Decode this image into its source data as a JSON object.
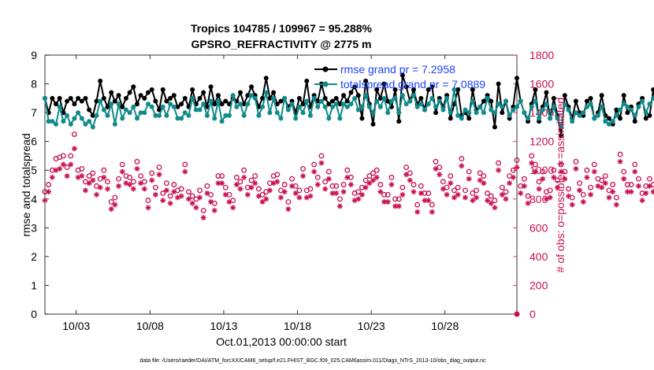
{
  "chart_data": {
    "type": "line",
    "title_line1": "Tropics 104785 / 109967 = 95.288%",
    "title_line2": "GPSRO_REFRACTIVITY @ 2775 m",
    "xlabel": "Oct.01,2013 00:00:00 start",
    "ylabel_left": "rmse and totalspread",
    "ylabel_right": "# of obs: o=possible; ∗=assimilated",
    "footer": "data file: /Users/raeder/DAI/ATM_forcXX/CAM6_setup/f.e21.FHIST_BGC.f09_025.CAM6assim.011/Diags_NTrS_2013-10/obs_diag_output.nc",
    "xlim_days": [
      0.875,
      32.875
    ],
    "x_ticks": [
      {
        "day": 3,
        "label": "10/03"
      },
      {
        "day": 8,
        "label": "10/08"
      },
      {
        "day": 13,
        "label": "10/13"
      },
      {
        "day": 18,
        "label": "10/18"
      },
      {
        "day": 23,
        "label": "10/23"
      },
      {
        "day": 28,
        "label": "10/28"
      }
    ],
    "ylim_left": [
      0,
      9
    ],
    "yticks_left": [
      "0",
      "1",
      "2",
      "3",
      "4",
      "5",
      "6",
      "7",
      "8",
      "9"
    ],
    "ylim_right": [
      0,
      1800
    ],
    "yticks_right": [
      "0",
      "200",
      "400",
      "600",
      "800",
      "1000",
      "1200",
      "1400",
      "1600",
      "1800"
    ],
    "x_start_day": 0.875,
    "x_step_days": 0.25,
    "series": [
      {
        "name": "rmse grand pr = 7.2958",
        "color": "#000000",
        "axis": "left",
        "values": [
          7.5,
          7.0,
          7.5,
          7.3,
          7.5,
          7.0,
          7.4,
          7.5,
          7.3,
          7.5,
          7.4,
          7.5,
          7.1,
          6.9,
          7.4,
          8.1,
          7.5,
          7.2,
          7.7,
          7.4,
          7.6,
          7.2,
          7.5,
          7.7,
          7.9,
          7.3,
          7.6,
          7.5,
          7.7,
          7.8,
          7.4,
          7.1,
          7.8,
          7.4,
          7.5,
          7.6,
          7.2,
          7.3,
          7.5,
          7.2,
          7.8,
          7.3,
          7.5,
          7.7,
          7.2,
          7.9,
          7.3,
          7.6,
          7.3,
          7.4,
          7.3,
          7.5,
          7.4,
          7.7,
          7.3,
          7.6,
          7.9,
          7.6,
          7.2,
          7.5,
          8.2,
          7.5,
          7.7,
          7.3,
          7.4,
          7.5,
          7.2,
          7.4,
          7.0,
          7.5,
          7.3,
          8.1,
          7.2,
          7.6,
          7.4,
          8.0,
          7.5,
          7.3,
          7.4,
          7.5,
          7.3,
          7.6,
          7.4,
          7.7,
          7.9,
          7.6,
          6.8,
          8.1,
          7.3,
          6.6,
          7.8,
          7.5,
          8.0,
          7.4,
          7.2,
          7.8,
          6.7,
          8.3,
          7.9,
          7.4,
          7.8,
          7.3,
          7.5,
          7.1,
          7.8,
          7.9,
          7.0,
          7.5,
          7.2,
          7.6,
          6.8,
          7.3,
          7.8,
          6.9,
          7.0,
          6.8,
          7.8,
          7.1,
          7.2,
          7.4,
          7.6,
          7.4,
          6.5,
          8.0,
          7.0,
          7.4,
          6.8,
          7.2,
          8.2,
          7.4,
          7.0,
          6.7,
          7.3,
          7.8,
          6.7,
          7.2,
          7.7,
          6.8,
          7.5,
          6.9,
          6.2,
          7.6,
          7.2,
          6.8,
          7.4,
          7.0,
          6.9,
          7.4,
          7.5,
          6.8,
          7.0,
          7.6,
          6.9,
          6.8,
          6.6,
          7.1,
          6.8,
          7.6,
          7.0,
          7.2,
          6.7,
          7.3,
          7.5,
          6.8,
          6.9,
          7.8,
          7.1,
          7.2,
          7.6,
          7.0,
          6.7,
          7.9,
          7.0,
          7.5,
          7.3,
          8.0,
          7.2,
          6.9,
          7.6,
          7.0,
          7.5,
          7.7,
          6.8,
          7.3,
          7.9,
          7.0,
          7.4,
          6.8,
          7.7,
          7.2,
          7.4,
          6.8,
          7.0,
          6.9,
          7.2,
          7.0,
          7.5,
          7.2,
          6.9,
          7.4,
          7.1,
          7.3,
          7.4,
          7.0,
          7.5,
          7.2,
          7.6,
          8.7,
          7.8,
          7.2,
          7.0
        ]
      },
      {
        "name": "totalspread grand pr = 7.0889",
        "color": "#108a8a",
        "axis": "left",
        "values": [
          7.5,
          6.7,
          6.7,
          6.6,
          7.2,
          6.7,
          6.9,
          6.6,
          6.8,
          7.0,
          6.8,
          6.6,
          6.7,
          6.5,
          6.9,
          7.4,
          7.1,
          6.9,
          7.3,
          6.6,
          7.3,
          6.8,
          7.1,
          7.0,
          7.2,
          6.8,
          7.0,
          7.0,
          7.3,
          7.2,
          6.9,
          6.9,
          7.2,
          6.9,
          7.3,
          7.2,
          6.8,
          6.8,
          7.0,
          6.9,
          7.5,
          7.1,
          7.1,
          7.3,
          6.9,
          7.4,
          6.8,
          7.4,
          6.7,
          6.9,
          6.9,
          7.6,
          7.2,
          7.3,
          6.9,
          7.3,
          7.6,
          7.5,
          6.9,
          7.2,
          7.7,
          7.0,
          7.5,
          7.0,
          6.8,
          7.5,
          7.1,
          7.3,
          6.8,
          7.2,
          7.0,
          7.4,
          6.9,
          7.5,
          7.2,
          7.4,
          7.2,
          6.8,
          7.2,
          7.3,
          6.8,
          7.3,
          7.2,
          7.3,
          7.5,
          7.1,
          7.2,
          7.6,
          7.2,
          7.0,
          7.4,
          7.2,
          7.5,
          7.0,
          7.4,
          7.5,
          7.0,
          7.6,
          7.3,
          7.4,
          7.6,
          7.2,
          7.3,
          7.1,
          7.3,
          7.5,
          7.2,
          7.4,
          7.1,
          7.5,
          7.0,
          7.8,
          6.9,
          6.8,
          7.1,
          7.0,
          7.4,
          7.0,
          7.2,
          7.0,
          7.5,
          7.1,
          7.0,
          7.3,
          7.2,
          7.4,
          6.9,
          7.1,
          7.2,
          7.4,
          7.0,
          6.8,
          7.2,
          7.4,
          6.8,
          7.1,
          7.3,
          6.8,
          7.2,
          6.8,
          6.5,
          7.3,
          7.1,
          6.7,
          7.0,
          6.9,
          7.0,
          7.2,
          7.3,
          6.8,
          6.9,
          7.2,
          6.7,
          6.6,
          6.7,
          6.9,
          7.1,
          7.3,
          7.2,
          7.1,
          6.9,
          7.2,
          7.4,
          7.0,
          7.3,
          7.5,
          7.3,
          7.2,
          7.2,
          6.9,
          6.8,
          7.3,
          7.1,
          7.2,
          7.0,
          7.5,
          7.1,
          7.2,
          7.3,
          6.7,
          7.2,
          7.5,
          7.1,
          6.9,
          7.3,
          7.3,
          7.0,
          7.4,
          7.1,
          7.1,
          7.3,
          7.2,
          7.0,
          7.1,
          7.0,
          7.1,
          7.4,
          7.0,
          7.1,
          6.9,
          7.3,
          7.0,
          7.0,
          6.9,
          7.2,
          7.4,
          6.8,
          7.5,
          7.9,
          7.7,
          7.5,
          7.2
        ]
      },
      {
        "name": "obs possible",
        "color": "#c8104f",
        "axis": "right",
        "marker": "o",
        "values": [
          850,
          900,
          1000,
          1080,
          1090,
          1100,
          1020,
          1100,
          1250,
          1000,
          1010,
          920,
          960,
          980,
          890,
          940,
          1000,
          920,
          780,
          810,
          940,
          1040,
          960,
          950,
          920,
          1060,
          960,
          920,
          790,
          980,
          880,
          1020,
          840,
          910,
          820,
          900,
          860,
          870,
          1040,
          850,
          820,
          800,
          860,
          720,
          890,
          830,
          770,
          960,
          960,
          880,
          830,
          790,
          950,
          920,
          1000,
          880,
          930,
          960,
          870,
          830,
          850,
          910,
          960,
          970,
          860,
          900,
          780,
          940,
          890,
          860,
          1010,
          860,
          870,
          1040,
          950,
          1100,
          920,
          990,
          890,
          890,
          800,
          900,
          1000,
          950,
          840,
          850,
          880,
          930,
          960,
          980,
          1000,
          900,
          830,
          830,
          950,
          800,
          800,
          880,
          1020,
          980,
          900,
          760,
          890,
          840,
          840,
          760,
          1060,
          1020,
          920,
          880,
          960,
          860,
          880,
          1080,
          860,
          990,
          840,
          860,
          980,
          960,
          840,
          820,
          790,
          1050,
          880,
          850,
          960,
          1000,
          1070,
          890,
          940,
          820,
          1100,
          1040,
          920,
          990,
          850,
          860,
          1000,
          930,
          1040,
          990,
          870,
          810,
          1060,
          910,
          830,
          1000,
          880,
          1040,
          940,
          930,
          960,
          860,
          900,
          810,
          1110,
          990,
          900,
          900,
          1040,
          940,
          840,
          890,
          940,
          900,
          890,
          1100,
          970,
          900,
          920,
          880,
          860,
          1000,
          930,
          900,
          1010,
          870,
          900,
          950,
          900,
          1000,
          920,
          860,
          880,
          950,
          900,
          880,
          1000,
          900,
          960,
          890,
          920,
          940,
          940,
          920,
          990,
          880,
          900,
          900,
          900,
          930,
          930,
          980
        ]
      },
      {
        "name": "obs assimilated",
        "color": "#c8104f",
        "axis": "right",
        "marker": "*",
        "values": [
          790,
          850,
          950,
          1000,
          1010,
          1040,
          960,
          1040,
          1150,
          950,
          960,
          860,
          910,
          930,
          830,
          880,
          950,
          870,
          730,
          760,
          890,
          990,
          910,
          900,
          870,
          1010,
          910,
          870,
          740,
          930,
          830,
          970,
          790,
          860,
          770,
          850,
          810,
          820,
          990,
          800,
          770,
          740,
          810,
          670,
          840,
          780,
          720,
          910,
          910,
          830,
          780,
          740,
          900,
          870,
          950,
          830,
          880,
          910,
          820,
          780,
          800,
          860,
          910,
          920,
          810,
          850,
          730,
          890,
          840,
          810,
          960,
          810,
          820,
          990,
          900,
          1050,
          870,
          940,
          840,
          840,
          750,
          850,
          950,
          900,
          790,
          800,
          830,
          880,
          910,
          930,
          950,
          850,
          780,
          780,
          900,
          750,
          750,
          830,
          970,
          930,
          850,
          710,
          840,
          790,
          790,
          710,
          1010,
          970,
          870,
          830,
          910,
          810,
          830,
          1030,
          810,
          940,
          790,
          810,
          930,
          910,
          790,
          770,
          740,
          1000,
          830,
          800,
          910,
          950,
          1020,
          840,
          890,
          770,
          1050,
          990,
          870,
          940,
          800,
          810,
          950,
          880,
          990,
          940,
          820,
          760,
          1010,
          860,
          780,
          950,
          830,
          990,
          890,
          880,
          910,
          810,
          850,
          760,
          1060,
          940,
          850,
          850,
          990,
          890,
          790,
          840,
          890,
          850,
          840,
          1050,
          920,
          850,
          870,
          830,
          810,
          950,
          880,
          850,
          960,
          820,
          850,
          900,
          850,
          950,
          870,
          810,
          830,
          900,
          850,
          830,
          950,
          850,
          910,
          840,
          870,
          890,
          890,
          870,
          940,
          830,
          850,
          850,
          850,
          880,
          880,
          930
        ]
      }
    ],
    "annotation_right_end": "0"
  }
}
